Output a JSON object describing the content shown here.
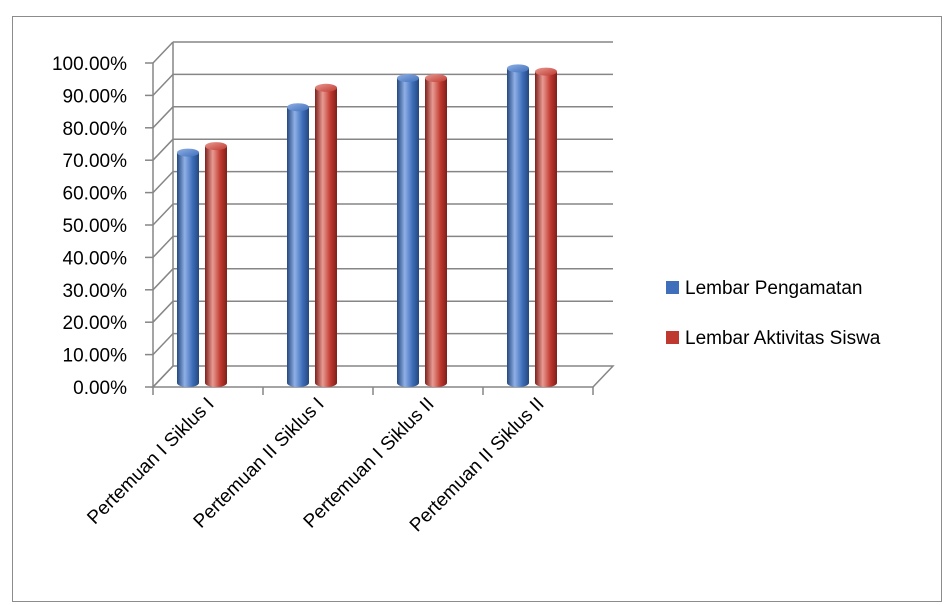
{
  "chart_data": {
    "type": "bar",
    "title": "",
    "xlabel": "",
    "ylabel": "",
    "categories": [
      "Pertemuan I Siklus I",
      "Pertemuan II Siklus I",
      "Pertemuan I Siklus II",
      "Pertemuan II Siklus II"
    ],
    "series": [
      {
        "name": "Lembar Pengamatan",
        "values": [
          70.5,
          84.5,
          93.5,
          96.5
        ],
        "color": "#3f6fba"
      },
      {
        "name": "Lembar Aktivitas Siswa",
        "values": [
          72.5,
          90.5,
          93.5,
          95.5
        ],
        "color": "#c0392f"
      }
    ],
    "ylim": [
      0,
      100
    ],
    "yticks": [
      "0.00%",
      "10.00%",
      "20.00%",
      "30.00%",
      "40.00%",
      "50.00%",
      "60.00%",
      "70.00%",
      "80.00%",
      "90.00%",
      "100.00%"
    ],
    "grid": true,
    "legend_position": "right",
    "style": "3d-cylinder"
  }
}
